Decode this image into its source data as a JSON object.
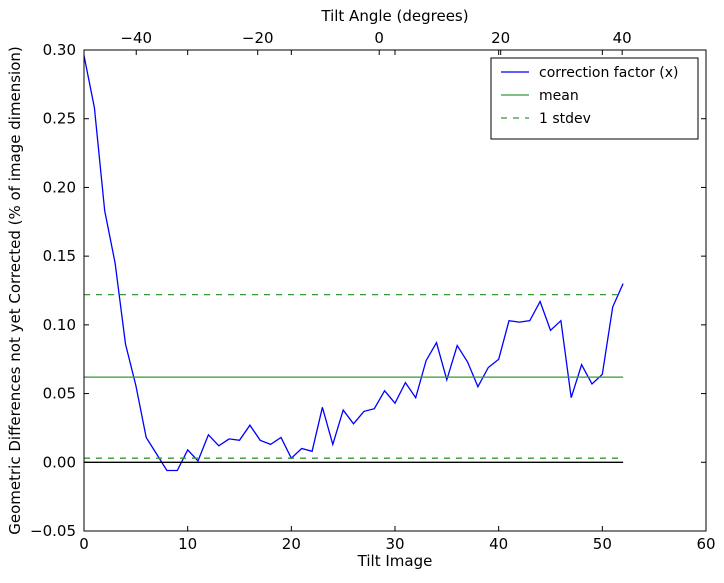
{
  "chart_data": {
    "type": "line",
    "title": "",
    "xlabel": "Tilt Image",
    "ylabel": "Geometric Differences not yet Corrected (% of image dimension)",
    "top_xlabel": "Tilt Angle (degrees)",
    "xlim": [
      0,
      60
    ],
    "ylim": [
      -0.05,
      0.3
    ],
    "xticks": [
      0,
      10,
      20,
      30,
      40,
      50,
      60
    ],
    "xtick_labels": [
      "0",
      "10",
      "20",
      "30",
      "40",
      "50",
      "60"
    ],
    "yticks": [
      -0.05,
      0.0,
      0.05,
      0.1,
      0.15,
      0.2,
      0.25,
      0.3
    ],
    "ytick_labels": [
      "−0.05",
      "0.00",
      "0.05",
      "0.10",
      "0.15",
      "0.20",
      "0.25",
      "0.30"
    ],
    "top_xlim": [
      -48.6,
      53.8
    ],
    "top_xticks": [
      -40,
      -20,
      0,
      20,
      40
    ],
    "top_xtick_labels": [
      "−40",
      "−20",
      "0",
      "20",
      "40"
    ],
    "grid": false,
    "legend_position": "top-right",
    "series": [
      {
        "name": "correction factor (x)",
        "color": "#0000ff",
        "style": "solid",
        "x": [
          0,
          1,
          2,
          3,
          4,
          5,
          6,
          7,
          8,
          9,
          10,
          11,
          12,
          13,
          14,
          15,
          16,
          17,
          18,
          19,
          20,
          21,
          22,
          23,
          24,
          25,
          26,
          27,
          28,
          29,
          30,
          31,
          32,
          33,
          34,
          35,
          36,
          37,
          38,
          39,
          40,
          41,
          42,
          43,
          44,
          45,
          46,
          47,
          48,
          49,
          50,
          51,
          52
        ],
        "y": [
          0.296,
          0.258,
          0.183,
          0.145,
          0.086,
          0.056,
          0.018,
          0.006,
          -0.006,
          -0.006,
          0.009,
          0.001,
          0.02,
          0.012,
          0.017,
          0.016,
          0.027,
          0.016,
          0.013,
          0.018,
          0.003,
          0.01,
          0.008,
          0.04,
          0.013,
          0.038,
          0.028,
          0.037,
          0.039,
          0.052,
          0.043,
          0.058,
          0.047,
          0.074,
          0.087,
          0.06,
          0.085,
          0.073,
          0.055,
          0.069,
          0.075,
          0.103,
          0.102,
          0.103,
          0.117,
          0.096,
          0.103,
          0.047,
          0.071,
          0.057,
          0.064,
          0.113,
          0.13
        ]
      },
      {
        "name": "mean",
        "color": "#339933",
        "style": "solid",
        "x": [
          0,
          52
        ],
        "y": [
          0.062,
          0.062
        ]
      },
      {
        "name": "1 stdev",
        "color": "#339933",
        "style": "dashed",
        "x": [
          0,
          52
        ],
        "y": [
          0.122,
          0.122
        ]
      },
      {
        "color": "#339933",
        "style": "dashed",
        "x": [
          0,
          52
        ],
        "y": [
          0.003,
          0.003
        ]
      },
      {
        "color": "#000000",
        "style": "solid",
        "x": [
          0,
          52
        ],
        "y": [
          0.0,
          0.0
        ]
      }
    ]
  }
}
